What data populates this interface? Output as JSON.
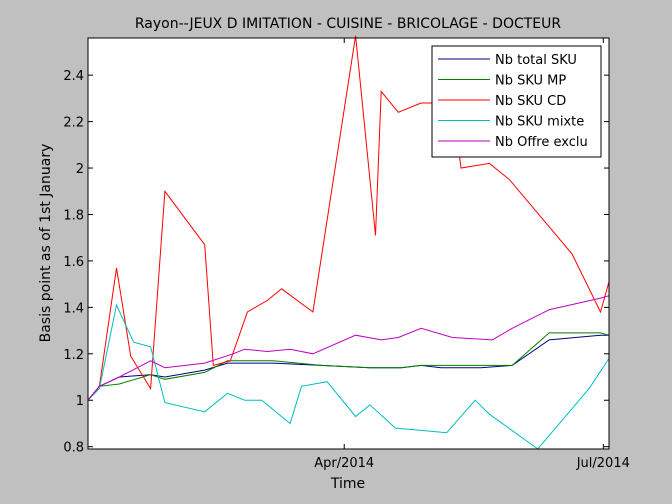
{
  "chart_data": {
    "type": "line",
    "title": "Rayon--JEUX D IMITATION - CUISINE - BRICOLAGE - DOCTEUR",
    "xlabel": "Time",
    "ylabel": "Basis point as of 1st January",
    "x_tick_labels": [
      {
        "label": "Apr/2014",
        "x": 90
      },
      {
        "label": "Jul/2014",
        "x": 181
      }
    ],
    "y_ticks": [
      0.8,
      1,
      1.2,
      1.4,
      1.6,
      1.8,
      2,
      2.2,
      2.4
    ],
    "y_tick_labels": [
      "0.8",
      "1",
      "1.2",
      "1.4",
      "1.6",
      "1.8",
      "2",
      "2.2",
      "2.4"
    ],
    "xlim": [
      0,
      183
    ],
    "ylim": [
      0.79,
      2.56
    ],
    "grid": false,
    "legend_position": "top-right",
    "series": [
      {
        "name": "Nb total SKU",
        "color": "#00007f",
        "x": [
          0,
          4,
          11,
          22,
          27,
          41,
          49,
          55,
          65,
          82,
          99,
          110,
          117,
          124,
          138,
          149,
          162,
          180,
          183
        ],
        "y": [
          1.0,
          1.06,
          1.1,
          1.11,
          1.1,
          1.13,
          1.16,
          1.16,
          1.16,
          1.15,
          1.14,
          1.14,
          1.15,
          1.14,
          1.14,
          1.15,
          1.26,
          1.28,
          1.28
        ]
      },
      {
        "name": "Nb SKU MP",
        "color": "#007f00",
        "x": [
          0,
          4,
          11,
          22,
          27,
          41,
          49,
          55,
          65,
          82,
          99,
          110,
          117,
          124,
          138,
          149,
          162,
          180,
          183
        ],
        "y": [
          1.0,
          1.06,
          1.07,
          1.11,
          1.09,
          1.12,
          1.17,
          1.17,
          1.17,
          1.15,
          1.14,
          1.14,
          1.15,
          1.15,
          1.15,
          1.15,
          1.29,
          1.29,
          1.28
        ]
      },
      {
        "name": "Nb SKU CD",
        "color": "#ff0000",
        "x": [
          0,
          4,
          10,
          15,
          22,
          27,
          41,
          44,
          50,
          56,
          63,
          68,
          79,
          94,
          101,
          103,
          109,
          117,
          128,
          131,
          141,
          148,
          170,
          180,
          183
        ],
        "y": [
          1.0,
          1.06,
          1.57,
          1.19,
          1.05,
          1.9,
          1.67,
          1.15,
          1.17,
          1.38,
          1.43,
          1.48,
          1.38,
          2.57,
          1.71,
          2.33,
          2.24,
          2.28,
          2.28,
          2.0,
          2.02,
          1.95,
          1.63,
          1.38,
          1.51
        ]
      },
      {
        "name": "Nb SKU mixte",
        "color": "#00bfbf",
        "x": [
          0,
          4,
          10,
          16,
          22,
          27,
          41,
          49,
          55,
          61,
          71,
          75,
          84,
          94,
          99,
          108,
          117,
          126,
          136,
          141,
          158,
          176,
          183
        ],
        "y": [
          1.0,
          1.05,
          1.41,
          1.25,
          1.23,
          0.99,
          0.95,
          1.03,
          1.0,
          1.0,
          0.9,
          1.06,
          1.08,
          0.93,
          0.98,
          0.88,
          0.87,
          0.86,
          1.0,
          0.94,
          0.79,
          1.05,
          1.18
        ]
      },
      {
        "name": "Nb Offre exclu",
        "color": "#bf00bf",
        "x": [
          0,
          4,
          11,
          22,
          27,
          41,
          51,
          55,
          63,
          71,
          79,
          94,
          103,
          109,
          117,
          128,
          142,
          149,
          162,
          180,
          183
        ],
        "y": [
          1.0,
          1.06,
          1.1,
          1.17,
          1.14,
          1.16,
          1.2,
          1.22,
          1.21,
          1.22,
          1.2,
          1.28,
          1.26,
          1.27,
          1.31,
          1.27,
          1.26,
          1.31,
          1.39,
          1.44,
          1.45
        ]
      }
    ]
  }
}
